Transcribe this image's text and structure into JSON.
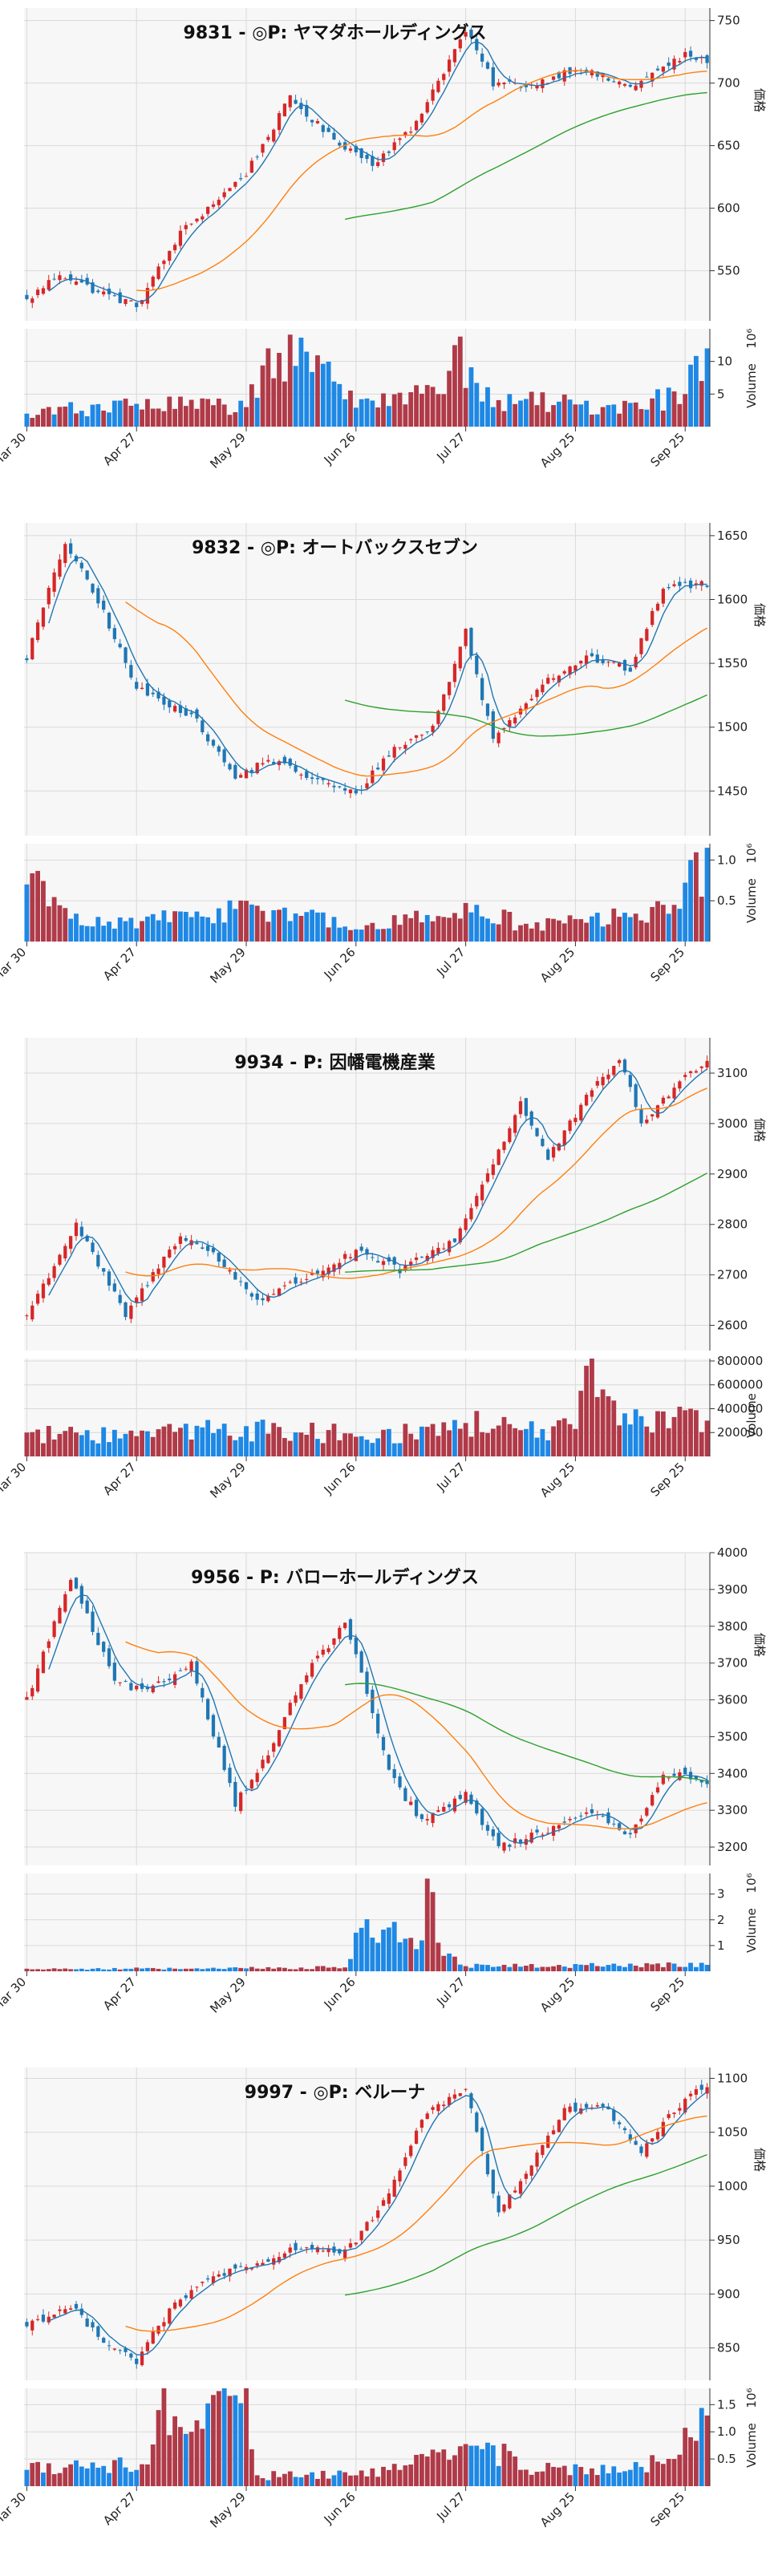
{
  "colors": {
    "up": "#d62728",
    "down": "#1f77b4",
    "vol_up": "#b03a48",
    "vol_down": "#1e88e5",
    "ma5": "#1f77b4",
    "ma25": "#ff7f0e",
    "ma75": "#2ca02c",
    "grid": "#d9d9d9",
    "plot_bg": "#f7f7f7"
  },
  "chart_data": [
    {
      "type": "candlestick",
      "title": "9831 - ◎P: ヤマダホールディングス",
      "ylabel": "価格",
      "volume_label": "Volume",
      "volume_multiplier_label": "10⁶",
      "ylim": [
        510,
        760
      ],
      "yticks": [
        "550",
        "600",
        "650",
        "700",
        "750"
      ],
      "vol_ylim": [
        0,
        15
      ],
      "vol_ticks": [
        "5",
        "10"
      ],
      "xticks": [
        "Mar 30",
        "Apr 27",
        "May 29",
        "Jun 26",
        "Jul 27",
        "Aug 25",
        "Sep 25"
      ],
      "xtick_index": [
        0,
        20,
        40,
        60,
        80,
        100,
        120
      ],
      "points": 125,
      "anchors": [
        [
          0,
          526
        ],
        [
          6,
          548
        ],
        [
          12,
          535
        ],
        [
          20,
          522
        ],
        [
          28,
          580
        ],
        [
          36,
          612
        ],
        [
          40,
          628
        ],
        [
          48,
          688
        ],
        [
          55,
          658
        ],
        [
          63,
          636
        ],
        [
          70,
          662
        ],
        [
          80,
          742
        ],
        [
          85,
          700
        ],
        [
          92,
          698
        ],
        [
          100,
          712
        ],
        [
          110,
          697
        ],
        [
          120,
          722
        ],
        [
          124,
          718
        ]
      ],
      "ma25_start": 20,
      "ma75_start": 58,
      "volume": [
        [
          0,
          2
        ],
        [
          20,
          3.5
        ],
        [
          40,
          3
        ],
        [
          44,
          12
        ],
        [
          63,
          4
        ],
        [
          75,
          5
        ],
        [
          78,
          12.5
        ],
        [
          85,
          3
        ],
        [
          90,
          4
        ],
        [
          105,
          3
        ],
        [
          120,
          5
        ],
        [
          121,
          9.5
        ],
        [
          123,
          7
        ],
        [
          124,
          12
        ]
      ]
    },
    {
      "type": "candlestick",
      "title": "9832 - ◎P: オートバックスセブン",
      "ylabel": "価格",
      "volume_label": "Volume",
      "volume_multiplier_label": "10⁶",
      "ylim": [
        1415,
        1660
      ],
      "yticks": [
        "1450",
        "1500",
        "1550",
        "1600",
        "1650"
      ],
      "vol_ylim": [
        0,
        1.2
      ],
      "vol_ticks": [
        "0.5",
        "1.0"
      ],
      "xticks": [
        "Mar 30",
        "Apr 27",
        "May 29",
        "Jun 26",
        "Jul 27",
        "Aug 25",
        "Sep 25"
      ],
      "xtick_index": [
        0,
        20,
        40,
        60,
        80,
        100,
        120
      ],
      "points": 125,
      "anchors": [
        [
          0,
          1555
        ],
        [
          7,
          1645
        ],
        [
          14,
          1590
        ],
        [
          20,
          1530
        ],
        [
          30,
          1510
        ],
        [
          38,
          1460
        ],
        [
          44,
          1475
        ],
        [
          52,
          1460
        ],
        [
          60,
          1447
        ],
        [
          66,
          1480
        ],
        [
          74,
          1500
        ],
        [
          80,
          1575
        ],
        [
          85,
          1490
        ],
        [
          94,
          1535
        ],
        [
          102,
          1555
        ],
        [
          110,
          1545
        ],
        [
          116,
          1610
        ],
        [
          124,
          1612
        ]
      ],
      "ma25_start": 18,
      "ma75_start": 58,
      "volume": [
        [
          0,
          0.7
        ],
        [
          10,
          0.2
        ],
        [
          30,
          0.3
        ],
        [
          38,
          0.4
        ],
        [
          40,
          0.5
        ],
        [
          60,
          0.15
        ],
        [
          78,
          0.35
        ],
        [
          82,
          0.45
        ],
        [
          90,
          0.2
        ],
        [
          110,
          0.3
        ],
        [
          118,
          0.45
        ],
        [
          121,
          1.0
        ],
        [
          123,
          0.55
        ],
        [
          124,
          1.15
        ]
      ]
    },
    {
      "type": "candlestick",
      "title": "9934 - P: 因幡電機産業",
      "ylabel": "価格",
      "volume_label": "Volume",
      "volume_multiplier_label": "",
      "ylim": [
        2550,
        3170
      ],
      "yticks": [
        "2600",
        "2700",
        "2800",
        "2900",
        "3000",
        "3100"
      ],
      "vol_ylim": [
        0,
        820000
      ],
      "vol_ticks": [
        "200000",
        "400000",
        "600000",
        "800000"
      ],
      "xticks": [
        "Mar 30",
        "Apr 27",
        "May 29",
        "Jun 26",
        "Jul 27",
        "Aug 25",
        "Sep 25"
      ],
      "xtick_index": [
        0,
        20,
        40,
        60,
        80,
        100,
        120
      ],
      "points": 125,
      "anchors": [
        [
          0,
          2620
        ],
        [
          9,
          2800
        ],
        [
          18,
          2620
        ],
        [
          28,
          2780
        ],
        [
          34,
          2740
        ],
        [
          42,
          2650
        ],
        [
          52,
          2700
        ],
        [
          60,
          2745
        ],
        [
          68,
          2710
        ],
        [
          78,
          2770
        ],
        [
          84,
          2900
        ],
        [
          90,
          3040
        ],
        [
          95,
          2930
        ],
        [
          102,
          3050
        ],
        [
          108,
          3130
        ],
        [
          112,
          3000
        ],
        [
          118,
          3070
        ],
        [
          124,
          3130
        ]
      ],
      "ma25_start": 18,
      "ma75_start": 58,
      "volume": [
        [
          0,
          200000
        ],
        [
          20,
          170000
        ],
        [
          28,
          240000
        ],
        [
          35,
          230000
        ],
        [
          50,
          200000
        ],
        [
          70,
          190000
        ],
        [
          80,
          280000
        ],
        [
          90,
          220000
        ],
        [
          100,
          230000
        ],
        [
          102,
          760000
        ],
        [
          108,
          260000
        ],
        [
          118,
          330000
        ],
        [
          121,
          400000
        ],
        [
          124,
          300000
        ]
      ]
    },
    {
      "type": "candlestick",
      "title": "9956 - P: バローホールディングス",
      "ylabel": "価格",
      "volume_label": "Volume",
      "volume_multiplier_label": "10⁶",
      "ylim": [
        3150,
        4000
      ],
      "yticks": [
        "3200",
        "3300",
        "3400",
        "3500",
        "3600",
        "3700",
        "3800",
        "3900",
        "4000"
      ],
      "vol_ylim": [
        0,
        3.8
      ],
      "vol_ticks": [
        "1",
        "2",
        "3"
      ],
      "xticks": [
        "Mar 30",
        "Apr 27",
        "May 29",
        "Jun 26",
        "Jul 27",
        "Aug 25",
        "Sep 25"
      ],
      "xtick_index": [
        0,
        20,
        40,
        60,
        80,
        100,
        120
      ],
      "points": 125,
      "anchors": [
        [
          0,
          3600
        ],
        [
          8,
          3930
        ],
        [
          16,
          3650
        ],
        [
          22,
          3620
        ],
        [
          30,
          3700
        ],
        [
          38,
          3320
        ],
        [
          44,
          3450
        ],
        [
          50,
          3650
        ],
        [
          58,
          3810
        ],
        [
          62,
          3620
        ],
        [
          66,
          3400
        ],
        [
          72,
          3270
        ],
        [
          80,
          3340
        ],
        [
          86,
          3200
        ],
        [
          94,
          3240
        ],
        [
          102,
          3300
        ],
        [
          110,
          3230
        ],
        [
          116,
          3400
        ],
        [
          124,
          3380
        ]
      ],
      "ma25_start": 18,
      "ma75_start": 58,
      "volume": [
        [
          0,
          0.1
        ],
        [
          30,
          0.1
        ],
        [
          58,
          0.15
        ],
        [
          60,
          1.5
        ],
        [
          66,
          1.7
        ],
        [
          72,
          1.2
        ],
        [
          73,
          3.6
        ],
        [
          76,
          0.6
        ],
        [
          80,
          0.2
        ],
        [
          124,
          0.25
        ]
      ]
    },
    {
      "type": "candlestick",
      "title": "9997 - ◎P: ベルーナ",
      "ylabel": "価格",
      "volume_label": "Volume",
      "volume_multiplier_label": "10⁶",
      "ylim": [
        820,
        1110
      ],
      "yticks": [
        "850",
        "900",
        "950",
        "1000",
        "1050",
        "1100"
      ],
      "vol_ylim": [
        0,
        1.8
      ],
      "vol_ticks": [
        "0.5",
        "1.0",
        "1.5"
      ],
      "xticks": [
        "Mar 30",
        "Apr 27",
        "May 29",
        "Jun 26",
        "Jul 27",
        "Aug 25",
        "Sep 25"
      ],
      "xtick_index": [
        0,
        20,
        40,
        60,
        80,
        100,
        120
      ],
      "points": 125,
      "anchors": [
        [
          0,
          872
        ],
        [
          8,
          888
        ],
        [
          14,
          858
        ],
        [
          20,
          838
        ],
        [
          26,
          885
        ],
        [
          34,
          918
        ],
        [
          42,
          925
        ],
        [
          50,
          945
        ],
        [
          58,
          938
        ],
        [
          66,
          990
        ],
        [
          72,
          1065
        ],
        [
          80,
          1090
        ],
        [
          86,
          975
        ],
        [
          92,
          1020
        ],
        [
          98,
          1070
        ],
        [
          105,
          1075
        ],
        [
          112,
          1030
        ],
        [
          118,
          1070
        ],
        [
          124,
          1095
        ]
      ],
      "ma25_start": 18,
      "ma75_start": 58,
      "volume": [
        [
          0,
          0.3
        ],
        [
          22,
          0.4
        ],
        [
          24,
          1.4
        ],
        [
          30,
          1.0
        ],
        [
          40,
          1.8
        ],
        [
          42,
          0.2
        ],
        [
          60,
          0.2
        ],
        [
          84,
          0.8
        ],
        [
          90,
          0.3
        ],
        [
          110,
          0.3
        ],
        [
          118,
          0.5
        ],
        [
          121,
          0.9
        ],
        [
          124,
          1.3
        ]
      ]
    }
  ]
}
